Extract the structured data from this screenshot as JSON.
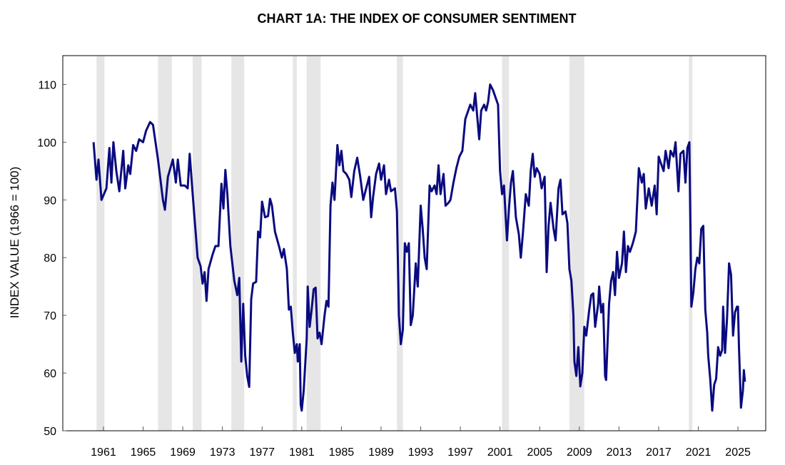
{
  "chart_data": {
    "type": "line",
    "title": "CHART 1A: THE INDEX OF CONSUMER SENTIMENT",
    "xlabel": "",
    "ylabel": "INDEX VALUE (1966 = 100)",
    "ylim": [
      50,
      115
    ],
    "xlim": [
      1956.9,
      2027.8
    ],
    "yticks": [
      50,
      60,
      70,
      80,
      90,
      100,
      110
    ],
    "xticks": [
      1961,
      1965,
      1969,
      1973,
      1977,
      1981,
      1985,
      1989,
      1993,
      1997,
      2001,
      2005,
      2009,
      2013,
      2017,
      2021,
      2025
    ],
    "grid": false,
    "line_color": "#0a0a80",
    "recession_color": "#e6e6e6",
    "recessions": [
      [
        1960.3,
        1961.1
      ],
      [
        1966.5,
        1967.9
      ],
      [
        1970.0,
        1970.9
      ],
      [
        1973.9,
        1975.2
      ],
      [
        1980.1,
        1980.5
      ],
      [
        1981.5,
        1982.9
      ],
      [
        1990.6,
        1991.2
      ],
      [
        2001.2,
        2001.9
      ],
      [
        2008.0,
        2009.5
      ],
      [
        2020.05,
        2020.4
      ]
    ],
    "series": [
      {
        "name": "Index of Consumer Sentiment",
        "points": [
          [
            1960.0,
            100
          ],
          [
            1960.3,
            93.5
          ],
          [
            1960.5,
            97
          ],
          [
            1960.8,
            90
          ],
          [
            1961.3,
            92
          ],
          [
            1961.6,
            99
          ],
          [
            1961.8,
            93
          ],
          [
            1962.0,
            100
          ],
          [
            1962.3,
            95
          ],
          [
            1962.6,
            91.5
          ],
          [
            1963.0,
            98.5
          ],
          [
            1963.2,
            92
          ],
          [
            1963.5,
            96
          ],
          [
            1963.7,
            94.5
          ],
          [
            1964.0,
            99.5
          ],
          [
            1964.3,
            98.5
          ],
          [
            1964.6,
            100.5
          ],
          [
            1965.0,
            100
          ],
          [
            1965.3,
            102
          ],
          [
            1965.7,
            103.5
          ],
          [
            1966.0,
            103
          ],
          [
            1966.5,
            97
          ],
          [
            1967.0,
            90
          ],
          [
            1967.2,
            88.3
          ],
          [
            1967.5,
            94
          ],
          [
            1968.0,
            97
          ],
          [
            1968.3,
            93
          ],
          [
            1968.5,
            97
          ],
          [
            1968.8,
            92.5
          ],
          [
            1969.2,
            92.5
          ],
          [
            1969.5,
            92
          ],
          [
            1969.7,
            98
          ],
          [
            1970.0,
            91
          ],
          [
            1970.5,
            80
          ],
          [
            1970.8,
            78.5
          ],
          [
            1971.0,
            75.5
          ],
          [
            1971.2,
            77.5
          ],
          [
            1971.4,
            72.5
          ],
          [
            1971.6,
            78
          ],
          [
            1972.0,
            80.5
          ],
          [
            1972.3,
            82
          ],
          [
            1972.6,
            82
          ],
          [
            1972.9,
            92.8
          ],
          [
            1973.1,
            88.5
          ],
          [
            1973.3,
            95.2
          ],
          [
            1973.5,
            91
          ],
          [
            1973.8,
            82
          ],
          [
            1974.2,
            76
          ],
          [
            1974.5,
            73.5
          ],
          [
            1974.7,
            76.5
          ],
          [
            1974.9,
            62
          ],
          [
            1975.1,
            72
          ],
          [
            1975.3,
            63
          ],
          [
            1975.5,
            59.5
          ],
          [
            1975.7,
            57.6
          ],
          [
            1975.9,
            72.8
          ],
          [
            1976.1,
            75.5
          ],
          [
            1976.4,
            75.8
          ],
          [
            1976.6,
            84.5
          ],
          [
            1976.8,
            83.5
          ],
          [
            1977.0,
            89.7
          ],
          [
            1977.3,
            87
          ],
          [
            1977.6,
            87.2
          ],
          [
            1977.8,
            90.2
          ],
          [
            1978.0,
            89
          ],
          [
            1978.3,
            84.5
          ],
          [
            1978.7,
            82
          ],
          [
            1979.0,
            80
          ],
          [
            1979.2,
            81.5
          ],
          [
            1979.5,
            78
          ],
          [
            1979.7,
            71
          ],
          [
            1979.9,
            71.5
          ],
          [
            1980.1,
            67
          ],
          [
            1980.3,
            63.5
          ],
          [
            1980.5,
            65
          ],
          [
            1980.6,
            62
          ],
          [
            1980.8,
            65
          ],
          [
            1980.9,
            54.5
          ],
          [
            1981.0,
            53.5
          ],
          [
            1981.2,
            57
          ],
          [
            1981.5,
            66
          ],
          [
            1981.6,
            75
          ],
          [
            1981.8,
            68
          ],
          [
            1982.0,
            71
          ],
          [
            1982.2,
            74.5
          ],
          [
            1982.4,
            74.8
          ],
          [
            1982.6,
            66
          ],
          [
            1982.8,
            67
          ],
          [
            1983.0,
            65
          ],
          [
            1983.3,
            70
          ],
          [
            1983.5,
            72.5
          ],
          [
            1983.7,
            71.5
          ],
          [
            1983.9,
            89
          ],
          [
            1984.1,
            93
          ],
          [
            1984.3,
            90
          ],
          [
            1984.6,
            99.5
          ],
          [
            1984.8,
            96
          ],
          [
            1985.0,
            98.5
          ],
          [
            1985.2,
            95
          ],
          [
            1985.5,
            94.5
          ],
          [
            1985.8,
            93.5
          ],
          [
            1986.0,
            90.5
          ],
          [
            1986.3,
            95
          ],
          [
            1986.6,
            97.3
          ],
          [
            1986.9,
            94
          ],
          [
            1987.2,
            90
          ],
          [
            1987.5,
            92
          ],
          [
            1987.8,
            94
          ],
          [
            1988.0,
            87
          ],
          [
            1988.2,
            90.5
          ],
          [
            1988.5,
            94.5
          ],
          [
            1988.8,
            96.3
          ],
          [
            1989.0,
            93.5
          ],
          [
            1989.3,
            96
          ],
          [
            1989.5,
            91
          ],
          [
            1989.8,
            93.5
          ],
          [
            1990.0,
            91.5
          ],
          [
            1990.4,
            92
          ],
          [
            1990.6,
            88
          ],
          [
            1990.8,
            70
          ],
          [
            1991.0,
            65
          ],
          [
            1991.2,
            67.5
          ],
          [
            1991.4,
            82.5
          ],
          [
            1991.6,
            81
          ],
          [
            1991.8,
            82.5
          ],
          [
            1992.0,
            68.3
          ],
          [
            1992.2,
            70
          ],
          [
            1992.5,
            79
          ],
          [
            1992.7,
            75
          ],
          [
            1993.0,
            89
          ],
          [
            1993.2,
            85
          ],
          [
            1993.4,
            80
          ],
          [
            1993.6,
            78
          ],
          [
            1993.9,
            92.5
          ],
          [
            1994.1,
            91.5
          ],
          [
            1994.4,
            92.5
          ],
          [
            1994.6,
            91
          ],
          [
            1994.8,
            96
          ],
          [
            1995.0,
            91
          ],
          [
            1995.3,
            94.5
          ],
          [
            1995.5,
            89
          ],
          [
            1995.8,
            89.5
          ],
          [
            1996.0,
            90
          ],
          [
            1996.3,
            93
          ],
          [
            1996.6,
            95.5
          ],
          [
            1996.9,
            97.5
          ],
          [
            1997.2,
            98.5
          ],
          [
            1997.5,
            104
          ],
          [
            1997.8,
            105.5
          ],
          [
            1998.0,
            106.5
          ],
          [
            1998.3,
            105.5
          ],
          [
            1998.5,
            108.5
          ],
          [
            1998.7,
            104.5
          ],
          [
            1998.9,
            100.5
          ],
          [
            1999.1,
            105.5
          ],
          [
            1999.4,
            106.5
          ],
          [
            1999.6,
            105.5
          ],
          [
            1999.8,
            107
          ],
          [
            2000.0,
            110
          ],
          [
            2000.3,
            109
          ],
          [
            2000.6,
            107.5
          ],
          [
            2000.8,
            106.5
          ],
          [
            2001.0,
            95
          ],
          [
            2001.2,
            91
          ],
          [
            2001.4,
            92.5
          ],
          [
            2001.7,
            83
          ],
          [
            2001.9,
            88.5
          ],
          [
            2002.1,
            93
          ],
          [
            2002.3,
            95
          ],
          [
            2002.6,
            87
          ],
          [
            2002.9,
            84
          ],
          [
            2003.1,
            80
          ],
          [
            2003.3,
            84
          ],
          [
            2003.6,
            91
          ],
          [
            2003.9,
            89
          ],
          [
            2004.1,
            95
          ],
          [
            2004.3,
            98
          ],
          [
            2004.5,
            94
          ],
          [
            2004.7,
            95.5
          ],
          [
            2005.0,
            94.5
          ],
          [
            2005.2,
            92
          ],
          [
            2005.5,
            94
          ],
          [
            2005.7,
            77.5
          ],
          [
            2005.9,
            85.5
          ],
          [
            2006.1,
            89.5
          ],
          [
            2006.4,
            85
          ],
          [
            2006.6,
            83
          ],
          [
            2006.9,
            92
          ],
          [
            2007.1,
            93.5
          ],
          [
            2007.3,
            87.5
          ],
          [
            2007.6,
            88
          ],
          [
            2007.8,
            86
          ],
          [
            2008.0,
            78
          ],
          [
            2008.2,
            76
          ],
          [
            2008.4,
            70
          ],
          [
            2008.5,
            62
          ],
          [
            2008.7,
            59.5
          ],
          [
            2008.9,
            64.5
          ],
          [
            2009.1,
            57.7
          ],
          [
            2009.3,
            60
          ],
          [
            2009.5,
            68
          ],
          [
            2009.7,
            66.5
          ],
          [
            2010.0,
            71
          ],
          [
            2010.2,
            73.5
          ],
          [
            2010.4,
            73.8
          ],
          [
            2010.6,
            68
          ],
          [
            2010.9,
            72
          ],
          [
            2011.0,
            75
          ],
          [
            2011.2,
            70.5
          ],
          [
            2011.4,
            72
          ],
          [
            2011.6,
            59.5
          ],
          [
            2011.7,
            58.8
          ],
          [
            2012.0,
            72
          ],
          [
            2012.2,
            76
          ],
          [
            2012.4,
            77.5
          ],
          [
            2012.6,
            73.5
          ],
          [
            2012.8,
            81
          ],
          [
            2013.0,
            76.5
          ],
          [
            2013.3,
            79
          ],
          [
            2013.5,
            84.5
          ],
          [
            2013.7,
            77.5
          ],
          [
            2013.9,
            82
          ],
          [
            2014.1,
            81
          ],
          [
            2014.4,
            82.5
          ],
          [
            2014.7,
            84.5
          ],
          [
            2015.0,
            95.5
          ],
          [
            2015.3,
            93
          ],
          [
            2015.5,
            94.5
          ],
          [
            2015.7,
            88.5
          ],
          [
            2016.0,
            92
          ],
          [
            2016.3,
            89
          ],
          [
            2016.6,
            92.5
          ],
          [
            2016.8,
            87.5
          ],
          [
            2017.0,
            97.5
          ],
          [
            2017.2,
            96.5
          ],
          [
            2017.5,
            95
          ],
          [
            2017.7,
            98.5
          ],
          [
            2018.0,
            95.5
          ],
          [
            2018.2,
            98.5
          ],
          [
            2018.5,
            97.5
          ],
          [
            2018.7,
            100
          ],
          [
            2019.0,
            91.5
          ],
          [
            2019.2,
            98
          ],
          [
            2019.5,
            98.5
          ],
          [
            2019.7,
            93
          ],
          [
            2019.9,
            99
          ],
          [
            2020.1,
            100
          ],
          [
            2020.3,
            71.5
          ],
          [
            2020.5,
            74
          ],
          [
            2020.7,
            78
          ],
          [
            2020.9,
            80
          ],
          [
            2021.1,
            79
          ],
          [
            2021.3,
            85
          ],
          [
            2021.5,
            85.5
          ],
          [
            2021.7,
            71
          ],
          [
            2021.9,
            67
          ],
          [
            2022.0,
            63
          ],
          [
            2022.2,
            59
          ],
          [
            2022.4,
            53.5
          ],
          [
            2022.6,
            58
          ],
          [
            2022.8,
            59
          ],
          [
            2023.0,
            64.5
          ],
          [
            2023.2,
            63
          ],
          [
            2023.4,
            64
          ],
          [
            2023.5,
            71.5
          ],
          [
            2023.7,
            63.5
          ],
          [
            2023.9,
            69.5
          ],
          [
            2024.1,
            79
          ],
          [
            2024.3,
            77
          ],
          [
            2024.5,
            66.5
          ],
          [
            2024.7,
            70.5
          ],
          [
            2024.9,
            71.5
          ],
          [
            2025.0,
            71.5
          ],
          [
            2025.1,
            64.5
          ],
          [
            2025.3,
            54
          ],
          [
            2025.5,
            57
          ],
          [
            2025.6,
            60.5
          ],
          [
            2025.7,
            58.5
          ]
        ]
      }
    ]
  }
}
